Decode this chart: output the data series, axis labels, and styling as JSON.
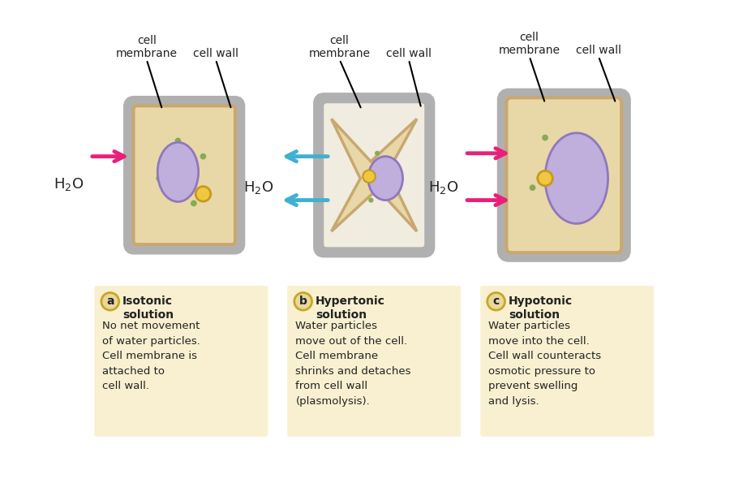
{
  "bg_color": "#ffffff",
  "cell_bg": "#e8d8a8",
  "cell_wall_color": "#b0b0b0",
  "cell_membrane_color": "#c8a870",
  "nucleus_color": "#c0aedd",
  "nucleus_border": "#9078bb",
  "vacuole_color": "#f0c840",
  "vacuole_border": "#c89820",
  "green_dot_color": "#88aa55",
  "arrow_pink": "#e8207a",
  "arrow_blue": "#40b0d0",
  "text_color": "#222222",
  "label_bg": "#e8d8a0",
  "label_border": "#c8a820",
  "panel_bg": "#f8f0d0",
  "title_a": "Isotonic\nsolution",
  "desc_a": "No net movement\nof water particles.\nCell membrane is\nattached to\ncell wall.",
  "title_b": "Hypertonic\nsolution",
  "desc_b": "Water particles\nmove out of the cell.\nCell membrane\nshrinks and detaches\nfrom cell wall\n(plasmolysis).",
  "title_c": "Hypotonic\nsolution",
  "desc_c": "Water particles\nmove into the cell.\nCell wall counteracts\nosmotic pressure to\nprevent swelling\nand lysis."
}
